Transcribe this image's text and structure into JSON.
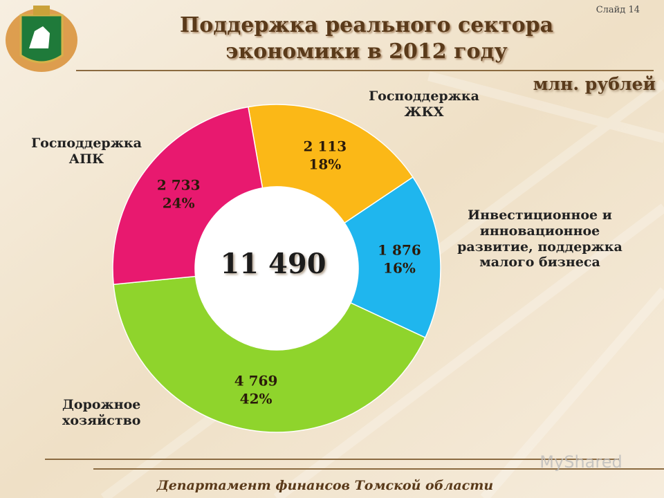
{
  "slide_number": "Слайд 14",
  "footer": "Департамент финансов Томской области",
  "watermark": "MyShared",
  "chart_data": {
    "type": "donut",
    "title": "Поддержка реального сектора экономики в 2012 году",
    "unit_label": "млн. рублей",
    "center_label": "11 490",
    "categories": [
      "Господдержка ЖКХ",
      "Инвестиционное и инновационное развитие, поддержка малого бизнеса",
      "Дорожное хозяйство",
      "Господдержка АПК"
    ],
    "values": [
      2113,
      1876,
      4769,
      2733
    ],
    "value_labels": [
      "2 113",
      "1 876",
      "4 769",
      "2 733"
    ],
    "percent_labels": [
      "18%",
      "16%",
      "42%",
      "24%"
    ],
    "colors": [
      "#fbb817",
      "#1fb6ee",
      "#8fd42c",
      "#e8196f"
    ]
  }
}
